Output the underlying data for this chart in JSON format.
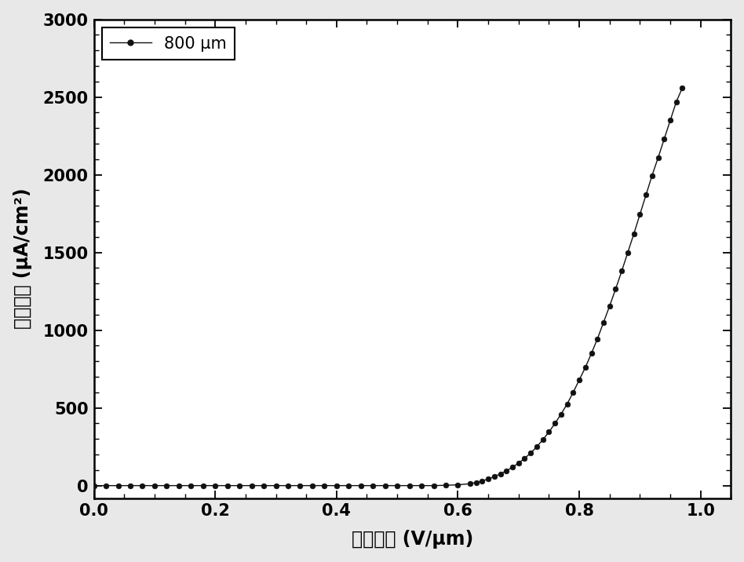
{
  "xlabel": "电场强度 (V/μm)",
  "ylabel": "电流密度 (μA/cm²)",
  "legend_label": "800 μm",
  "xlim": [
    0.0,
    1.05
  ],
  "ylim": [
    -80,
    3000
  ],
  "xticks": [
    0.0,
    0.2,
    0.4,
    0.6,
    0.8,
    1.0
  ],
  "yticks": [
    0,
    500,
    1000,
    1500,
    2000,
    2500,
    3000
  ],
  "line_color": "#111111",
  "marker": "o",
  "marker_size": 5,
  "line_width": 1.0,
  "background_color": "#e8e8e8",
  "x_data": [
    0.0,
    0.02,
    0.04,
    0.06,
    0.08,
    0.1,
    0.12,
    0.14,
    0.16,
    0.18,
    0.2,
    0.22,
    0.24,
    0.26,
    0.28,
    0.3,
    0.32,
    0.34,
    0.36,
    0.38,
    0.4,
    0.42,
    0.44,
    0.46,
    0.48,
    0.5,
    0.52,
    0.54,
    0.56,
    0.58,
    0.6,
    0.62,
    0.63,
    0.64,
    0.65,
    0.66,
    0.67,
    0.68,
    0.69,
    0.7,
    0.71,
    0.72,
    0.73,
    0.74,
    0.75,
    0.76,
    0.77,
    0.78,
    0.79,
    0.8,
    0.81,
    0.82,
    0.83,
    0.84,
    0.85,
    0.86,
    0.87,
    0.88,
    0.89,
    0.9,
    0.91,
    0.92,
    0.93,
    0.94,
    0.95,
    0.96,
    0.97
  ],
  "y_data": [
    0,
    0,
    0,
    0,
    0,
    0,
    0,
    0,
    0,
    0,
    0,
    0,
    0,
    0,
    0,
    0,
    0,
    0,
    0,
    0,
    0,
    0,
    0,
    0,
    0,
    0,
    0,
    0,
    0,
    2,
    5,
    12,
    20,
    30,
    42,
    58,
    75,
    95,
    118,
    145,
    175,
    210,
    250,
    295,
    345,
    400,
    460,
    525,
    600,
    680,
    760,
    850,
    945,
    1050,
    1155,
    1265,
    1380,
    1500,
    1620,
    1745,
    1870,
    1995,
    2110,
    2230,
    2350,
    2470,
    2560
  ]
}
